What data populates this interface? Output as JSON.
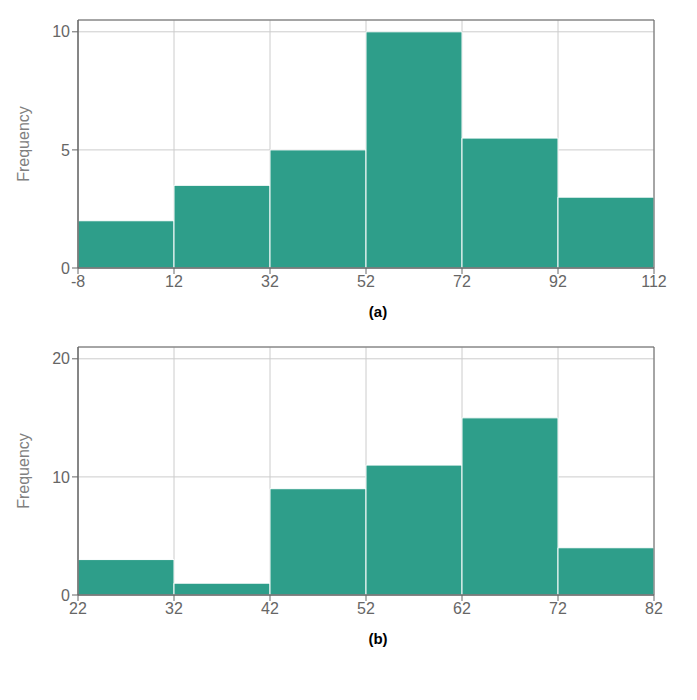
{
  "chart_data": [
    {
      "type": "histogram",
      "title": "(a)",
      "y_label": "Frequency",
      "bins": [
        -8,
        12,
        32,
        52,
        72,
        92,
        112
      ],
      "values": [
        2,
        3.5,
        5,
        10,
        5.5,
        3
      ],
      "color": "#2e9e8a",
      "xlim": [
        -8,
        112
      ],
      "ylim": [
        0,
        10.5
      ],
      "xticks": [
        -8,
        12,
        32,
        52,
        72,
        92,
        112
      ],
      "yticks": [
        0,
        5,
        10
      ],
      "grid": true
    },
    {
      "type": "histogram",
      "title": "(b)",
      "y_label": "Frequency",
      "bins": [
        22,
        32,
        42,
        52,
        62,
        72,
        82
      ],
      "values": [
        3,
        1,
        9,
        11,
        15,
        4
      ],
      "color": "#2e9e8a",
      "xlim": [
        22,
        82
      ],
      "ylim": [
        0,
        21
      ],
      "xticks": [
        22,
        32,
        42,
        52,
        62,
        72,
        82
      ],
      "yticks": [
        0,
        10,
        20
      ],
      "grid": true
    }
  ]
}
